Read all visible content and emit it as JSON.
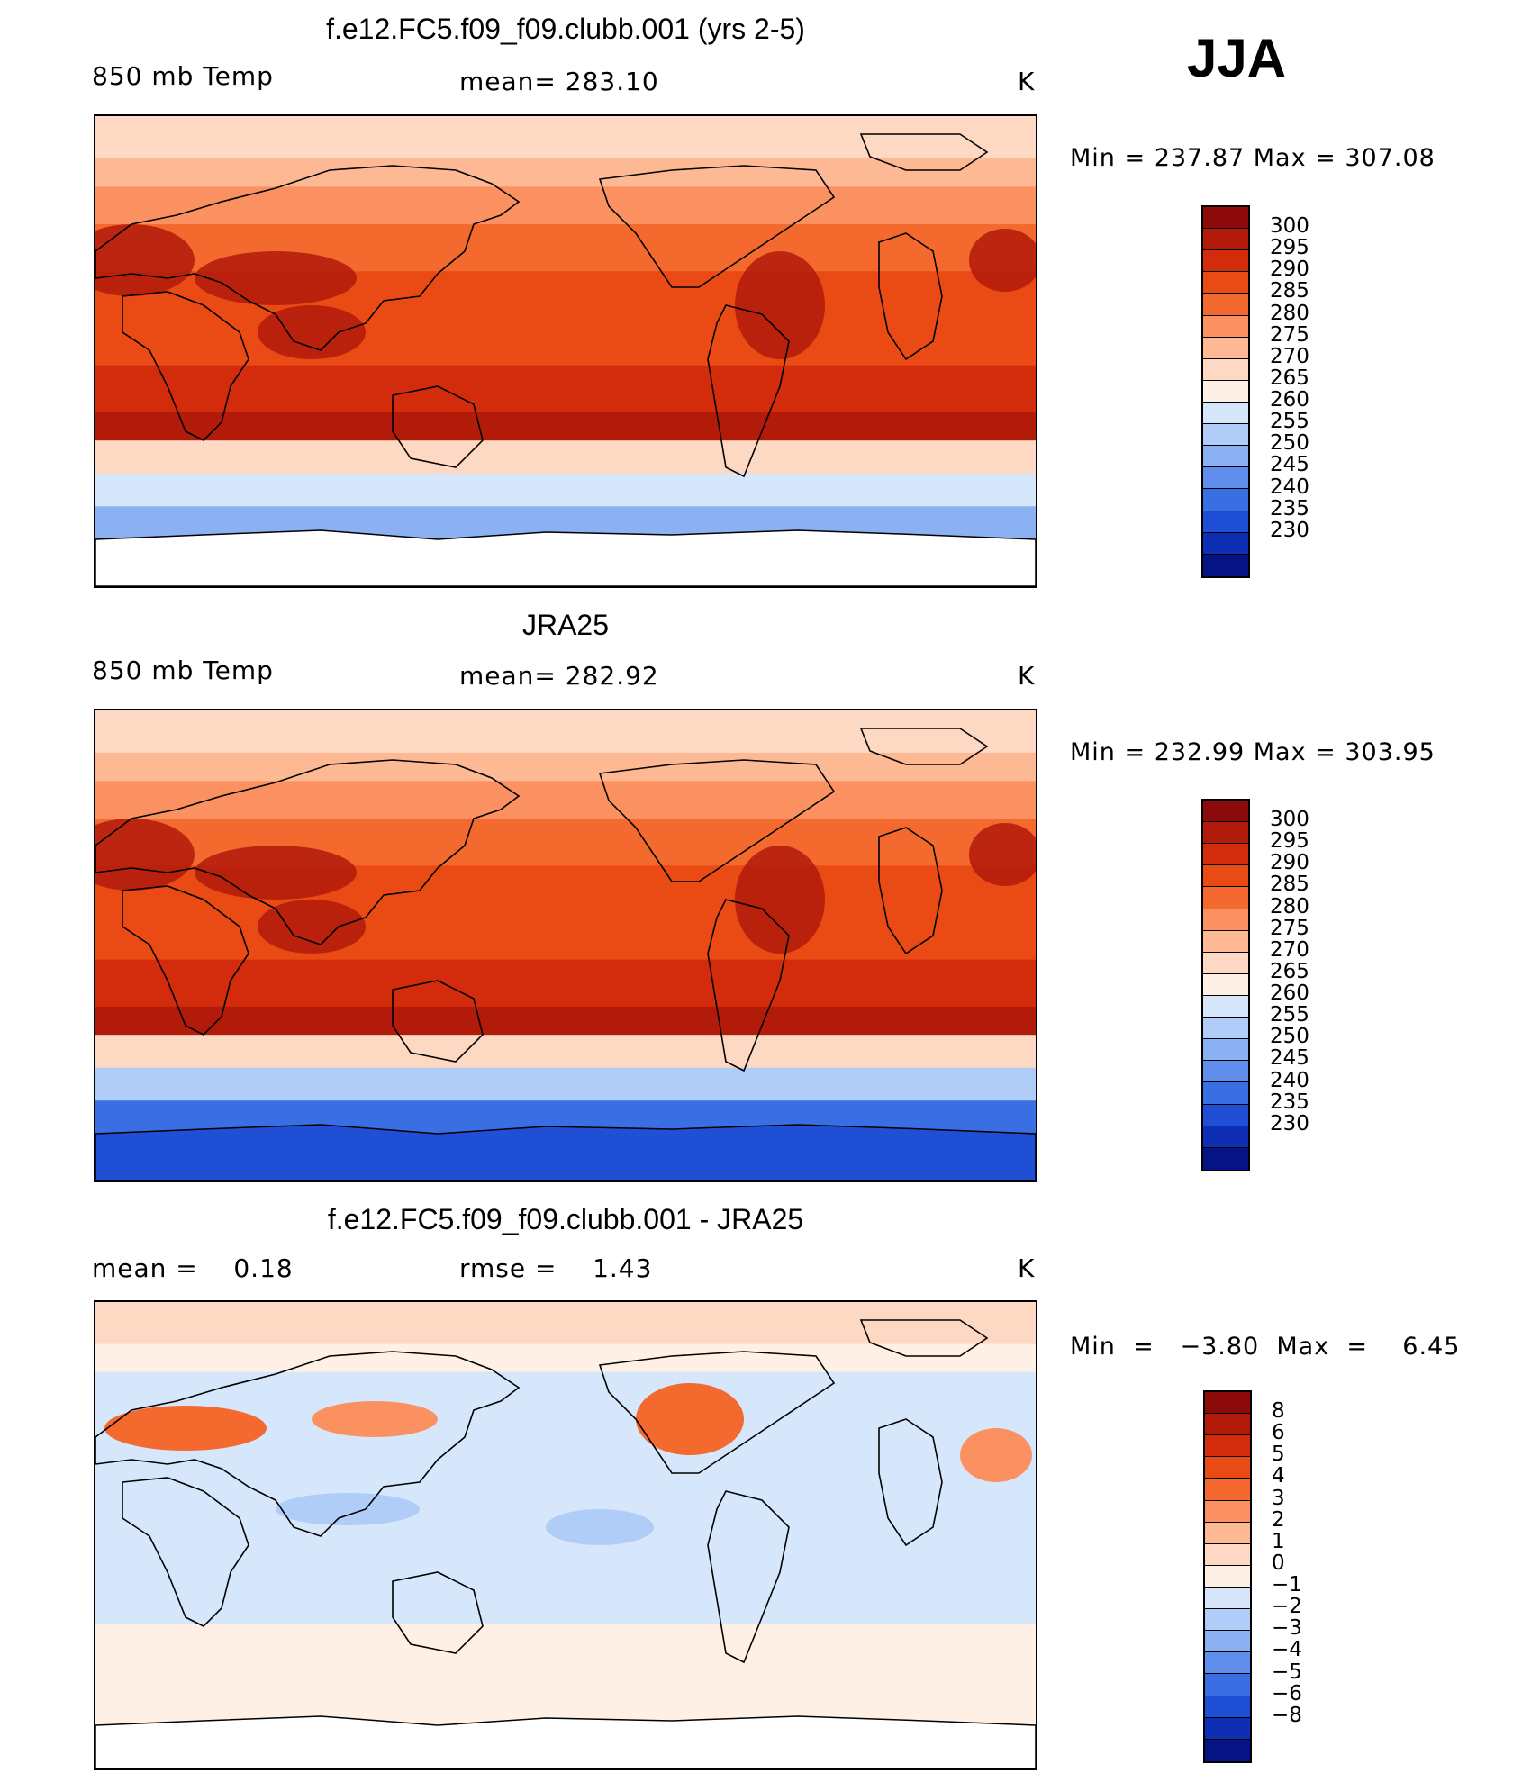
{
  "season": "JJA",
  "panels": [
    {
      "title": "f.e12.FC5.f09_f09.clubb.001 (yrs 2-5)",
      "left_label": "850 mb Temp",
      "center_label": "mean= 283.10",
      "units": "K",
      "min_max": "Min  =  237.87  Max  =  307.08",
      "colorbar_labels": [
        "300",
        "295",
        "290",
        "285",
        "280",
        "275",
        "270",
        "265",
        "260",
        "255",
        "250",
        "245",
        "240",
        "235",
        "230"
      ],
      "colorbar_colors": [
        "#8c0a0a",
        "#b21a0a",
        "#d22c0c",
        "#ea4a14",
        "#f4692e",
        "#fb9161",
        "#fdb894",
        "#fdd8c2",
        "#fef0e4",
        "#d6e6fb",
        "#b0cdf7",
        "#8bb1f3",
        "#5f8eec",
        "#3a6ee3",
        "#1f4fd4",
        "#0e2fb4",
        "#051385"
      ],
      "map_fill": [
        "#fdd8c2",
        "#fdb894",
        "#fb9161",
        "#f4692e",
        "#ea4a14",
        "#d22c0c",
        "#b21a0a",
        "#fdd8c2",
        "#d6e6fb",
        "#8bb1f3",
        "#5f8eec"
      ]
    },
    {
      "title": "JRA25",
      "left_label": "850 mb Temp",
      "center_label": "mean= 282.92",
      "units": "K",
      "min_max": "Min  =  232.99  Max  =  303.95",
      "colorbar_labels": [
        "300",
        "295",
        "290",
        "285",
        "280",
        "275",
        "270",
        "265",
        "260",
        "255",
        "250",
        "245",
        "240",
        "235",
        "230"
      ],
      "colorbar_colors": [
        "#8c0a0a",
        "#b21a0a",
        "#d22c0c",
        "#ea4a14",
        "#f4692e",
        "#fb9161",
        "#fdb894",
        "#fdd8c2",
        "#fef0e4",
        "#d6e6fb",
        "#b0cdf7",
        "#8bb1f3",
        "#5f8eec",
        "#3a6ee3",
        "#1f4fd4",
        "#0e2fb4",
        "#051385"
      ],
      "map_fill": [
        "#fdd8c2",
        "#fdb894",
        "#fb9161",
        "#f4692e",
        "#ea4a14",
        "#d22c0c",
        "#b21a0a",
        "#fdd8c2",
        "#b0cdf7",
        "#3a6ee3",
        "#0e2fb4"
      ]
    },
    {
      "title": "f.e12.FC5.f09_f09.clubb.001 - JRA25",
      "left_label": "mean =    0.18",
      "center_label": "rmse =    1.43",
      "units": "K",
      "min_max": "Min  =   −3.80  Max  =    6.45",
      "colorbar_labels": [
        "8",
        "6",
        "5",
        "4",
        "3",
        "2",
        "1",
        "0",
        "−1",
        "−2",
        "−3",
        "−4",
        "−5",
        "−6",
        "−8"
      ],
      "colorbar_colors": [
        "#8c0a0a",
        "#b21a0a",
        "#d22c0c",
        "#ea4a14",
        "#f4692e",
        "#fb9161",
        "#fdb894",
        "#fdd8c2",
        "#fef0e4",
        "#d6e6fb",
        "#b0cdf7",
        "#8bb1f3",
        "#5f8eec",
        "#3a6ee3",
        "#1f4fd4",
        "#0e2fb4",
        "#051385"
      ],
      "map_fill": [
        "#fdd8c2",
        "#fef0e4",
        "#d6e6fb",
        "#d6e6fb",
        "#d6e6fb",
        "#d6e6fb",
        "#d6e6fb",
        "#fef0e4",
        "#fef0e4",
        "#fef0e4",
        "#fef0e4"
      ]
    }
  ],
  "chart_data": [
    {
      "type": "heatmap",
      "title": "f.e12.FC5.f09_f09.clubb.001 (yrs 2-5)",
      "variable": "850 mb Temp",
      "units": "K",
      "mean": 283.1,
      "min": 237.87,
      "max": 307.08,
      "contour_levels": [
        230,
        235,
        240,
        245,
        250,
        255,
        260,
        265,
        270,
        275,
        280,
        285,
        290,
        295,
        300
      ]
    },
    {
      "type": "heatmap",
      "title": "JRA25",
      "variable": "850 mb Temp",
      "units": "K",
      "mean": 282.92,
      "min": 232.99,
      "max": 303.95,
      "contour_levels": [
        230,
        235,
        240,
        245,
        250,
        255,
        260,
        265,
        270,
        275,
        280,
        285,
        290,
        295,
        300
      ]
    },
    {
      "type": "heatmap",
      "title": "f.e12.FC5.f09_f09.clubb.001 - JRA25",
      "units": "K",
      "mean": 0.18,
      "rmse": 1.43,
      "min": -3.8,
      "max": 6.45,
      "contour_levels": [
        -8,
        -6,
        -5,
        -4,
        -3,
        -2,
        -1,
        0,
        1,
        2,
        3,
        4,
        5,
        6,
        8
      ]
    }
  ]
}
